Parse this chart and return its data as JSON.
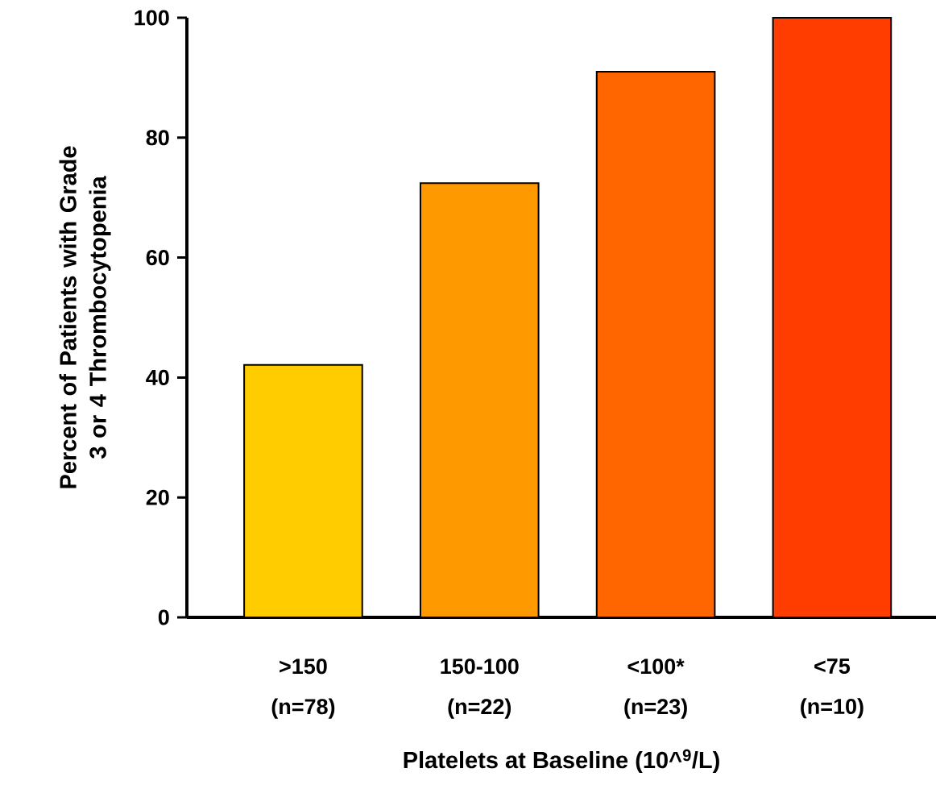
{
  "chart_data": {
    "type": "bar",
    "xlabel": "Platelets at Baseline (10^$^{9}$/L)",
    "ylabel": "Percent of Patients with Grade 3 or 4 Thrombocytopenia",
    "categories": [
      ">150 (n=78)",
      "150-100 (n=22)",
      "<100* (n=23)",
      "<75 (n=10)"
    ],
    "values": [
      42.1,
      72.4,
      91.0,
      100
    ],
    "colors": [
      "#ffcc00",
      "#ff9900",
      "#ff6600",
      "#ff3d00"
    ],
    "ylim": [
      0,
      100
    ],
    "yticks": [
      0,
      20,
      40,
      60,
      80,
      100
    ],
    "grid": false
  }
}
